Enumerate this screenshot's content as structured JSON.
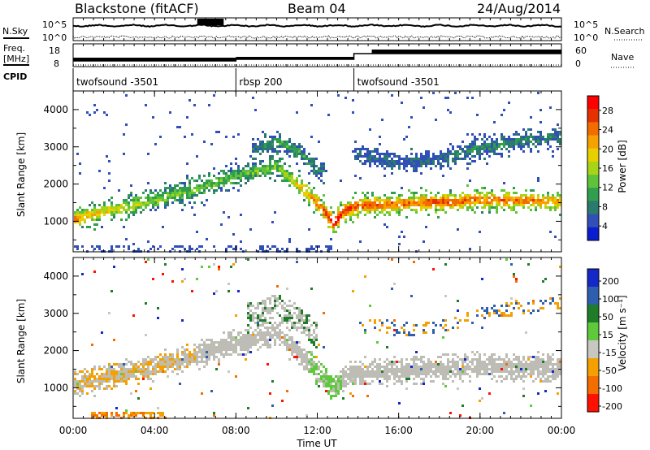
{
  "header": {
    "radar": "Blackstone (fitACF)",
    "beam": "Beam 04",
    "date": "24/Aug/2014"
  },
  "strips": {
    "nsky_label": "N.Sky",
    "nsearch_label": "N.Search",
    "noise_ticks": [
      "10^5",
      "10^0"
    ],
    "freq_label": "Freq.",
    "freq_unit": "[MHz]",
    "freq_ticks": [
      "18",
      "8"
    ],
    "nave_label": "Nave",
    "nave_ticks": [
      "60",
      "0"
    ],
    "cpid_label": "CPID"
  },
  "cpid_segments": [
    {
      "name": "twofsound -3501",
      "start_hour": 0,
      "end_hour": 8.0
    },
    {
      "name": "rbsp 200",
      "start_hour": 8.0,
      "end_hour": 13.8
    },
    {
      "name": "twofsound -3501",
      "start_hour": 13.8,
      "end_hour": 24
    }
  ],
  "chart_data": [
    {
      "type": "heatmap",
      "panel": "power",
      "ylabel": "Slant Range [km]",
      "ylim": [
        180,
        4500
      ],
      "yticks": [
        "1000",
        "2000",
        "3000",
        "4000"
      ],
      "xlim_hours": [
        0,
        24
      ],
      "colorbar_label": "Power [dB]",
      "colorbar_ticks": [
        "28",
        "24",
        "20",
        "16",
        "12",
        "8",
        "4"
      ],
      "colorbar_colors": [
        "#0a1ed0",
        "#3050b8",
        "#2a7a6e",
        "#2f9e4f",
        "#5fc33a",
        "#a8d418",
        "#e8d000",
        "#f7a100",
        "#f36c00",
        "#e53000",
        "#ff0000"
      ],
      "bands": [
        {
          "hours": [
            0,
            2,
            4,
            6,
            8,
            10,
            12,
            12.8,
            13.2,
            14,
            16,
            18,
            20,
            22,
            24
          ],
          "center_km": [
            1100,
            1350,
            1600,
            1900,
            2250,
            2500,
            1500,
            950,
            1300,
            1450,
            1500,
            1550,
            1600,
            1600,
            1550
          ],
          "strength_db": [
            20,
            16,
            12,
            12,
            10,
            12,
            22,
            28,
            26,
            24,
            22,
            24,
            22,
            22,
            20
          ]
        },
        {
          "hours": [
            9,
            10,
            11,
            12
          ],
          "center_km": [
            3000,
            3200,
            2900,
            2400
          ],
          "strength_db": [
            6,
            8,
            8,
            6
          ]
        },
        {
          "hours": [
            14,
            16,
            18,
            20,
            22,
            24
          ],
          "center_km": [
            2800,
            2600,
            2700,
            3000,
            3200,
            3300
          ],
          "strength_db": [
            4,
            4,
            4,
            6,
            6,
            6
          ]
        }
      ]
    },
    {
      "type": "heatmap",
      "panel": "velocity",
      "ylabel": "Slant Range [km]",
      "ylim": [
        180,
        4500
      ],
      "yticks": [
        "1000",
        "2000",
        "3000",
        "4000"
      ],
      "xlim_hours": [
        0,
        24
      ],
      "xticks": [
        "00:00",
        "04:00",
        "08:00",
        "12:00",
        "16:00",
        "20:00",
        "00:00"
      ],
      "xlabel": "Time UT",
      "colorbar_label": "Velocity [m s⁻¹]",
      "colorbar_ticks": [
        "200",
        "100",
        "50",
        "15",
        "-15",
        "-50",
        "-100",
        "-200"
      ],
      "colorbar_colors": [
        "#1428c8",
        "#2d5fae",
        "#1f7d2a",
        "#5ec93a",
        "#c8c8c0",
        "#f4a000",
        "#f36d00",
        "#ff1000"
      ],
      "ground_scatter_color": "#bdbdb5"
    }
  ],
  "colors": {
    "ground_scatter": "#bdbdb5",
    "axis": "#000000"
  }
}
